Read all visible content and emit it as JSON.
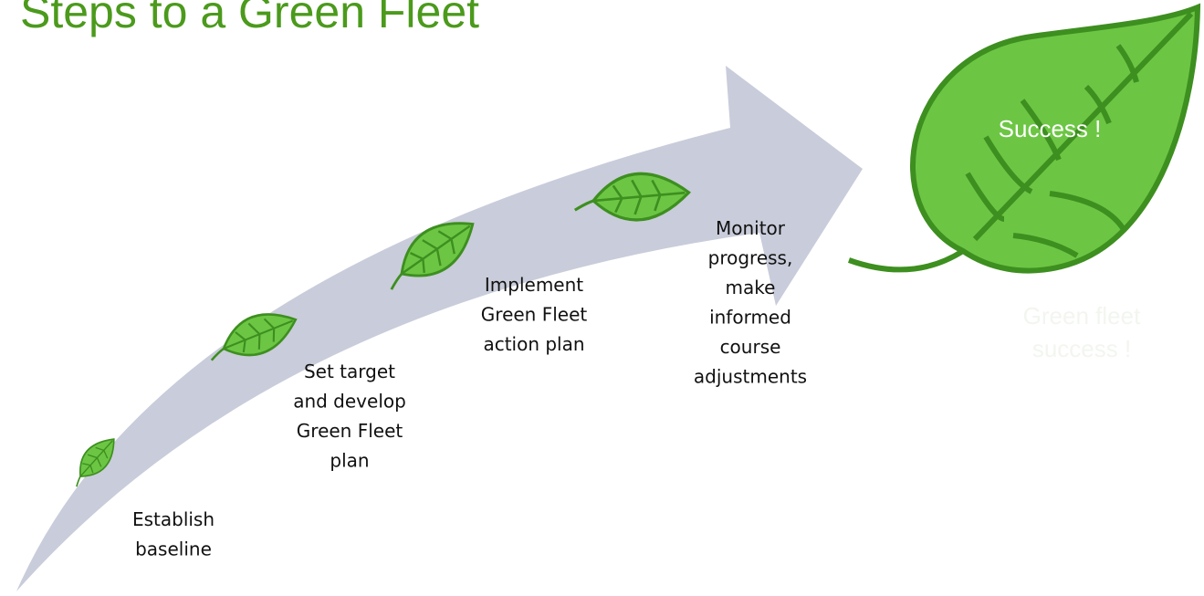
{
  "title": "Steps to a Green Fleet",
  "steps": [
    {
      "lines": [
        "Establish",
        "baseline"
      ]
    },
    {
      "lines": [
        "Set target",
        "and develop",
        "Green Fleet",
        "plan"
      ]
    },
    {
      "lines": [
        "Implement",
        "Green Fleet",
        "action plan"
      ]
    },
    {
      "lines": [
        "Monitor",
        "progress,",
        "make",
        "informed",
        "course",
        "adjustments"
      ]
    }
  ],
  "success": {
    "label": "Success !",
    "caption": [
      "Green fleet",
      "success !"
    ]
  }
}
